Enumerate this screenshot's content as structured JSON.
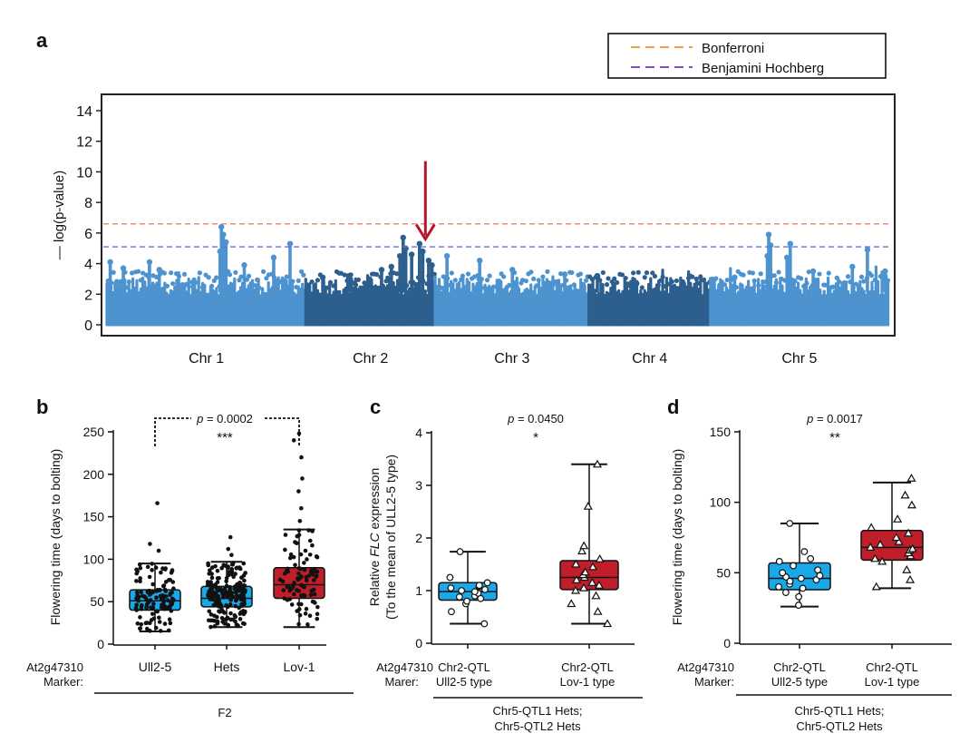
{
  "colors": {
    "chr_light": "#4d93cf",
    "chr_dark": "#2c5f8e",
    "bonferroni": "#f08a7e",
    "bonferroni_legend": "#f0a23a",
    "bh": "#6b6fd6",
    "bh_legend": "#8a4cbc",
    "arrow": "#b3162c",
    "box_blue": "#19a8e8",
    "box_red": "#c01f2a"
  },
  "chart_data": [
    {
      "id": "a",
      "type": "scatter",
      "panel_label": "a",
      "ylabel": "— log(p-value)",
      "ylim": [
        0,
        15
      ],
      "yticks": [
        "0",
        "2",
        "4",
        "6",
        "8",
        "10",
        "12",
        "14"
      ],
      "ytick_values": [
        0,
        2,
        4,
        6,
        8,
        10,
        12,
        14
      ],
      "chromosomes": [
        "Chr 1",
        "Chr 2",
        "Chr 3",
        "Chr 4",
        "Chr 5"
      ],
      "chr_extents": [
        [
          0,
          30.4
        ],
        [
          30.4,
          50.2
        ],
        [
          50.2,
          73.7
        ],
        [
          73.7,
          92.3
        ],
        [
          92.3,
          119.5
        ]
      ],
      "xlim": [
        0,
        119.5
      ],
      "thresholds": [
        {
          "name": "Bonferroni",
          "value": 6.6
        },
        {
          "name": "Benjamini Hochberg",
          "value": 5.1
        }
      ],
      "legend": [
        "Bonferroni",
        "Benjamini Hochberg"
      ],
      "peaks": [
        {
          "x": 0.5,
          "y": 4.1
        },
        {
          "x": 2.5,
          "y": 3.7
        },
        {
          "x": 6.5,
          "y": 4.1
        },
        {
          "x": 8,
          "y": 3.6
        },
        {
          "x": 17.5,
          "y": 6.4
        },
        {
          "x": 17.8,
          "y": 5.9
        },
        {
          "x": 18.2,
          "y": 5.4
        },
        {
          "x": 17.3,
          "y": 4.8
        },
        {
          "x": 25.5,
          "y": 4.4
        },
        {
          "x": 28,
          "y": 5.3
        },
        {
          "x": 21,
          "y": 3.9
        },
        {
          "x": 33,
          "y": 3.1
        },
        {
          "x": 37,
          "y": 3.2
        },
        {
          "x": 42,
          "y": 3.6
        },
        {
          "x": 45.3,
          "y": 5.7
        },
        {
          "x": 45.7,
          "y": 5.0
        },
        {
          "x": 44.8,
          "y": 4.5
        },
        {
          "x": 46.6,
          "y": 4.6
        },
        {
          "x": 47.8,
          "y": 5.3
        },
        {
          "x": 48.3,
          "y": 4.8
        },
        {
          "x": 49.2,
          "y": 4.2
        },
        {
          "x": 49.7,
          "y": 3.9
        },
        {
          "x": 43.5,
          "y": 3.8
        },
        {
          "x": 52,
          "y": 4.5
        },
        {
          "x": 57,
          "y": 4.2
        },
        {
          "x": 62,
          "y": 3.6
        },
        {
          "x": 70,
          "y": 3.3
        },
        {
          "x": 75,
          "y": 3.2
        },
        {
          "x": 81,
          "y": 2.7
        },
        {
          "x": 88,
          "y": 2.8
        },
        {
          "x": 96,
          "y": 3.1
        },
        {
          "x": 101.2,
          "y": 5.9
        },
        {
          "x": 101.5,
          "y": 5.2
        },
        {
          "x": 101,
          "y": 4.5
        },
        {
          "x": 104.5,
          "y": 5.3
        },
        {
          "x": 104,
          "y": 4.4
        },
        {
          "x": 108,
          "y": 3.5
        },
        {
          "x": 116.3,
          "y": 4.9
        },
        {
          "x": 114,
          "y": 3.8
        },
        {
          "x": 119,
          "y": 3.5
        }
      ],
      "annotation": {
        "type": "arrow",
        "x": 48.7,
        "y_from": 10.7,
        "y_to": 5.6
      }
    },
    {
      "id": "b",
      "type": "box",
      "panel_label": "b",
      "ylabel": "Flowering time (days to bolting)",
      "ylim": [
        0,
        250
      ],
      "yticks": [
        "0",
        "50",
        "100",
        "150",
        "200",
        "250"
      ],
      "ytick_values": [
        0,
        50,
        100,
        150,
        200,
        250
      ],
      "marker_label": [
        "At2g47310",
        "Marker:"
      ],
      "categories": [
        "Ull2-5",
        "Hets",
        "Lov-1"
      ],
      "group_label": "F2",
      "boxes": [
        {
          "name": "Ull2-5",
          "min": 15,
          "q1": 40,
          "median": 51,
          "q3": 64,
          "max": 95,
          "color": "#19a8e8"
        },
        {
          "name": "Hets",
          "min": 20,
          "q1": 44,
          "median": 54,
          "q3": 68,
          "max": 97,
          "color": "#19a8e8"
        },
        {
          "name": "Lov-1",
          "min": 20,
          "q1": 54,
          "median": 70,
          "q3": 90,
          "max": 135,
          "color": "#c01f2a"
        }
      ],
      "outliers": [
        [
          0,
          110
        ],
        [
          0,
          118
        ],
        [
          0,
          166
        ],
        [
          1,
          105
        ],
        [
          1,
          112
        ],
        [
          1,
          126
        ],
        [
          2,
          145
        ],
        [
          2,
          160
        ],
        [
          2,
          180
        ],
        [
          2,
          195
        ],
        [
          2,
          220
        ],
        [
          2,
          240
        ],
        [
          2,
          248
        ]
      ],
      "points": "dense dots, shape circle, n approx 120/200/90",
      "significance": {
        "text_p": "p",
        "text_rest": " = 0.0002",
        "stars": "***",
        "from": 0,
        "to": 2
      }
    },
    {
      "id": "c",
      "type": "box",
      "panel_label": "c",
      "ylabel_line1_parts": [
        "Relative ",
        "FLC",
        " expression"
      ],
      "ylabel_line2": "(To the mean of ULL2-5 type)",
      "ylim": [
        0,
        4
      ],
      "yticks": [
        "0",
        "1",
        "2",
        "3",
        "4"
      ],
      "ytick_values": [
        0,
        1,
        2,
        3,
        4
      ],
      "marker_label": [
        "At2g47310",
        "Marer:"
      ],
      "categories": [
        [
          "Chr2-QTL",
          "Ull2-5 type"
        ],
        [
          "Chr2-QTL",
          "Lov-1 type"
        ]
      ],
      "group_label": [
        "Chr5-QTL1 Hets;",
        "Chr5-QTL2 Hets"
      ],
      "boxes": [
        {
          "min": 0.37,
          "q1": 0.82,
          "median": 0.98,
          "q3": 1.15,
          "max": 1.74,
          "color": "#19a8e8"
        },
        {
          "min": 0.37,
          "q1": 1.02,
          "median": 1.25,
          "q3": 1.57,
          "max": 3.4,
          "color": "#c01f2a"
        }
      ],
      "points_a": [
        0.37,
        0.6,
        0.75,
        0.8,
        0.85,
        0.88,
        0.9,
        0.95,
        0.98,
        1.0,
        1.02,
        1.05,
        1.08,
        1.1,
        1.15,
        1.25,
        1.74
      ],
      "points_b": [
        0.37,
        0.6,
        0.75,
        0.9,
        1.0,
        1.05,
        1.1,
        1.15,
        1.2,
        1.25,
        1.3,
        1.35,
        1.45,
        1.5,
        1.6,
        1.75,
        1.85,
        2.6,
        3.4
      ],
      "significance": {
        "text_p": "p",
        "text_rest": " = 0.0450",
        "stars": "*"
      }
    },
    {
      "id": "d",
      "type": "box",
      "panel_label": "d",
      "ylabel": "Flowering time (days to bolting)",
      "ylim": [
        0,
        150
      ],
      "yticks": [
        "0",
        "50",
        "100",
        "150"
      ],
      "ytick_values": [
        0,
        50,
        100,
        150
      ],
      "marker_label": [
        "At2g47310",
        "Marker:"
      ],
      "categories": [
        [
          "Chr2-QTL",
          "Ull2-5 type"
        ],
        [
          "Chr2-QTL",
          "Lov-1 type"
        ]
      ],
      "group_label": [
        "Chr5-QTL1 Hets;",
        "Chr5-QTL2 Hets"
      ],
      "boxes": [
        {
          "min": 26,
          "q1": 38,
          "median": 46,
          "q3": 57,
          "max": 85,
          "color": "#19a8e8"
        },
        {
          "min": 39,
          "q1": 59,
          "median": 68,
          "q3": 80,
          "max": 114,
          "color": "#c01f2a"
        }
      ],
      "points_a": [
        27,
        33,
        36,
        39,
        40,
        42,
        44,
        45,
        46,
        47,
        48,
        50,
        52,
        55,
        58,
        60,
        65,
        85
      ],
      "points_b": [
        40,
        45,
        52,
        58,
        60,
        62,
        64,
        66,
        67,
        68,
        70,
        72,
        75,
        78,
        82,
        88,
        98,
        105,
        117
      ],
      "significance": {
        "text_p": "p",
        "text_rest": " = 0.0017",
        "stars": "**"
      }
    }
  ]
}
